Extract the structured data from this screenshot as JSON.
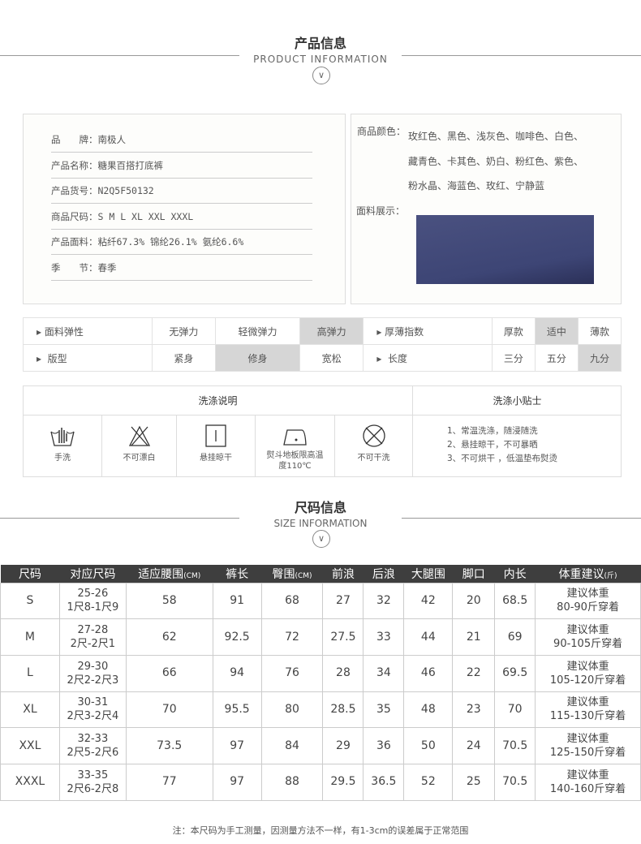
{
  "product_info": {
    "title_cn": "产品信息",
    "title_en": "PRODUCT INFORMATION",
    "rows": [
      {
        "label": "品　　牌：",
        "value": "南极人"
      },
      {
        "label": "产品名称：",
        "value": "糖果百搭打底裤"
      },
      {
        "label": "产品货号：",
        "value": "N2Q5F50132"
      },
      {
        "label": "商品尺码：",
        "value": "S M L XL XXL XXXL"
      },
      {
        "label": "产品面料：",
        "value": "粘纤67.3% 锦纶26.1% 氨纶6.6%"
      },
      {
        "label": "季　　节：",
        "value": "春季"
      }
    ],
    "colors_label": "商品颜色：",
    "colors_lines": [
      "玫红色、黑色、浅灰色、咖啡色、白色、",
      "藏青色、卡其色、奶白、粉红色、紫色、",
      "粉水晶、海蓝色、玫红、宁静蓝"
    ],
    "fabric_label": "面料展示：",
    "fabric_color": "#3d4575"
  },
  "attributes": [
    {
      "label": "面料弹性",
      "options": [
        "无弹力",
        "轻微弹力",
        "高弹力"
      ],
      "selected": 2
    },
    {
      "label": "厚薄指数",
      "options": [
        "厚款",
        "适中",
        "薄款"
      ],
      "selected": 1
    },
    {
      "label": "版型",
      "options": [
        "紧身",
        "修身",
        "宽松"
      ],
      "selected": 1
    },
    {
      "label": "长度",
      "options": [
        "三分",
        "五分",
        "九分"
      ],
      "selected": 2
    }
  ],
  "washing": {
    "title": "洗涤说明",
    "tips_title": "洗涤小贴士",
    "icons": [
      {
        "icon": "hand-wash-icon",
        "label": "手洗"
      },
      {
        "icon": "no-bleach-icon",
        "label": "不可漂白"
      },
      {
        "icon": "hang-dry-icon",
        "label": "悬挂晾干"
      },
      {
        "icon": "iron-icon",
        "label": "熨斗地板限高温度110℃"
      },
      {
        "icon": "no-dry-clean-icon",
        "label": "不可干洗"
      }
    ],
    "tips": [
      "1、常温洗涤，随浸随洗",
      "2、悬挂晾干，不可暴晒",
      "3、不可烘干 ，低温垫布熨烫"
    ]
  },
  "size_info": {
    "title_cn": "尺码信息",
    "title_en": "SIZE INFORMATION",
    "headers": [
      "尺码",
      "对应尺码",
      "适应腰围",
      "裤长",
      "臀围",
      "前浪",
      "后浪",
      "大腿围",
      "脚口",
      "内长",
      "体重建议"
    ],
    "header_units": [
      "",
      "",
      "(CM)",
      "",
      "(CM)",
      "",
      "",
      "",
      "",
      "",
      "(斤)"
    ],
    "rows": [
      [
        "S",
        "25-26|1尺8-1尺9",
        "58",
        "91",
        "68",
        "27",
        "32",
        "42",
        "20",
        "68.5",
        "建议体重|80-90斤穿着"
      ],
      [
        "M",
        "27-28|2尺-2尺1",
        "62",
        "92.5",
        "72",
        "27.5",
        "33",
        "44",
        "21",
        "69",
        "建议体重|90-105斤穿着"
      ],
      [
        "L",
        "29-30|2尺2-2尺3",
        "66",
        "94",
        "76",
        "28",
        "34",
        "46",
        "22",
        "69.5",
        "建议体重|105-120斤穿着"
      ],
      [
        "XL",
        "30-31|2尺3-2尺4",
        "70",
        "95.5",
        "80",
        "28.5",
        "35",
        "48",
        "23",
        "70",
        "建议体重|115-130斤穿着"
      ],
      [
        "XXL",
        "32-33|2尺5-2尺6",
        "73.5",
        "97",
        "84",
        "29",
        "36",
        "50",
        "24",
        "70.5",
        "建议体重|125-150斤穿着"
      ],
      [
        "XXXL",
        "33-35|2尺6-2尺8",
        "77",
        "97",
        "88",
        "29.5",
        "36.5",
        "52",
        "25",
        "70.5",
        "建议体重|140-160斤穿着"
      ]
    ],
    "note": "注：本尺码为手工测量，因测量方法不一样，有1-3cm的误差属于正常范围"
  }
}
